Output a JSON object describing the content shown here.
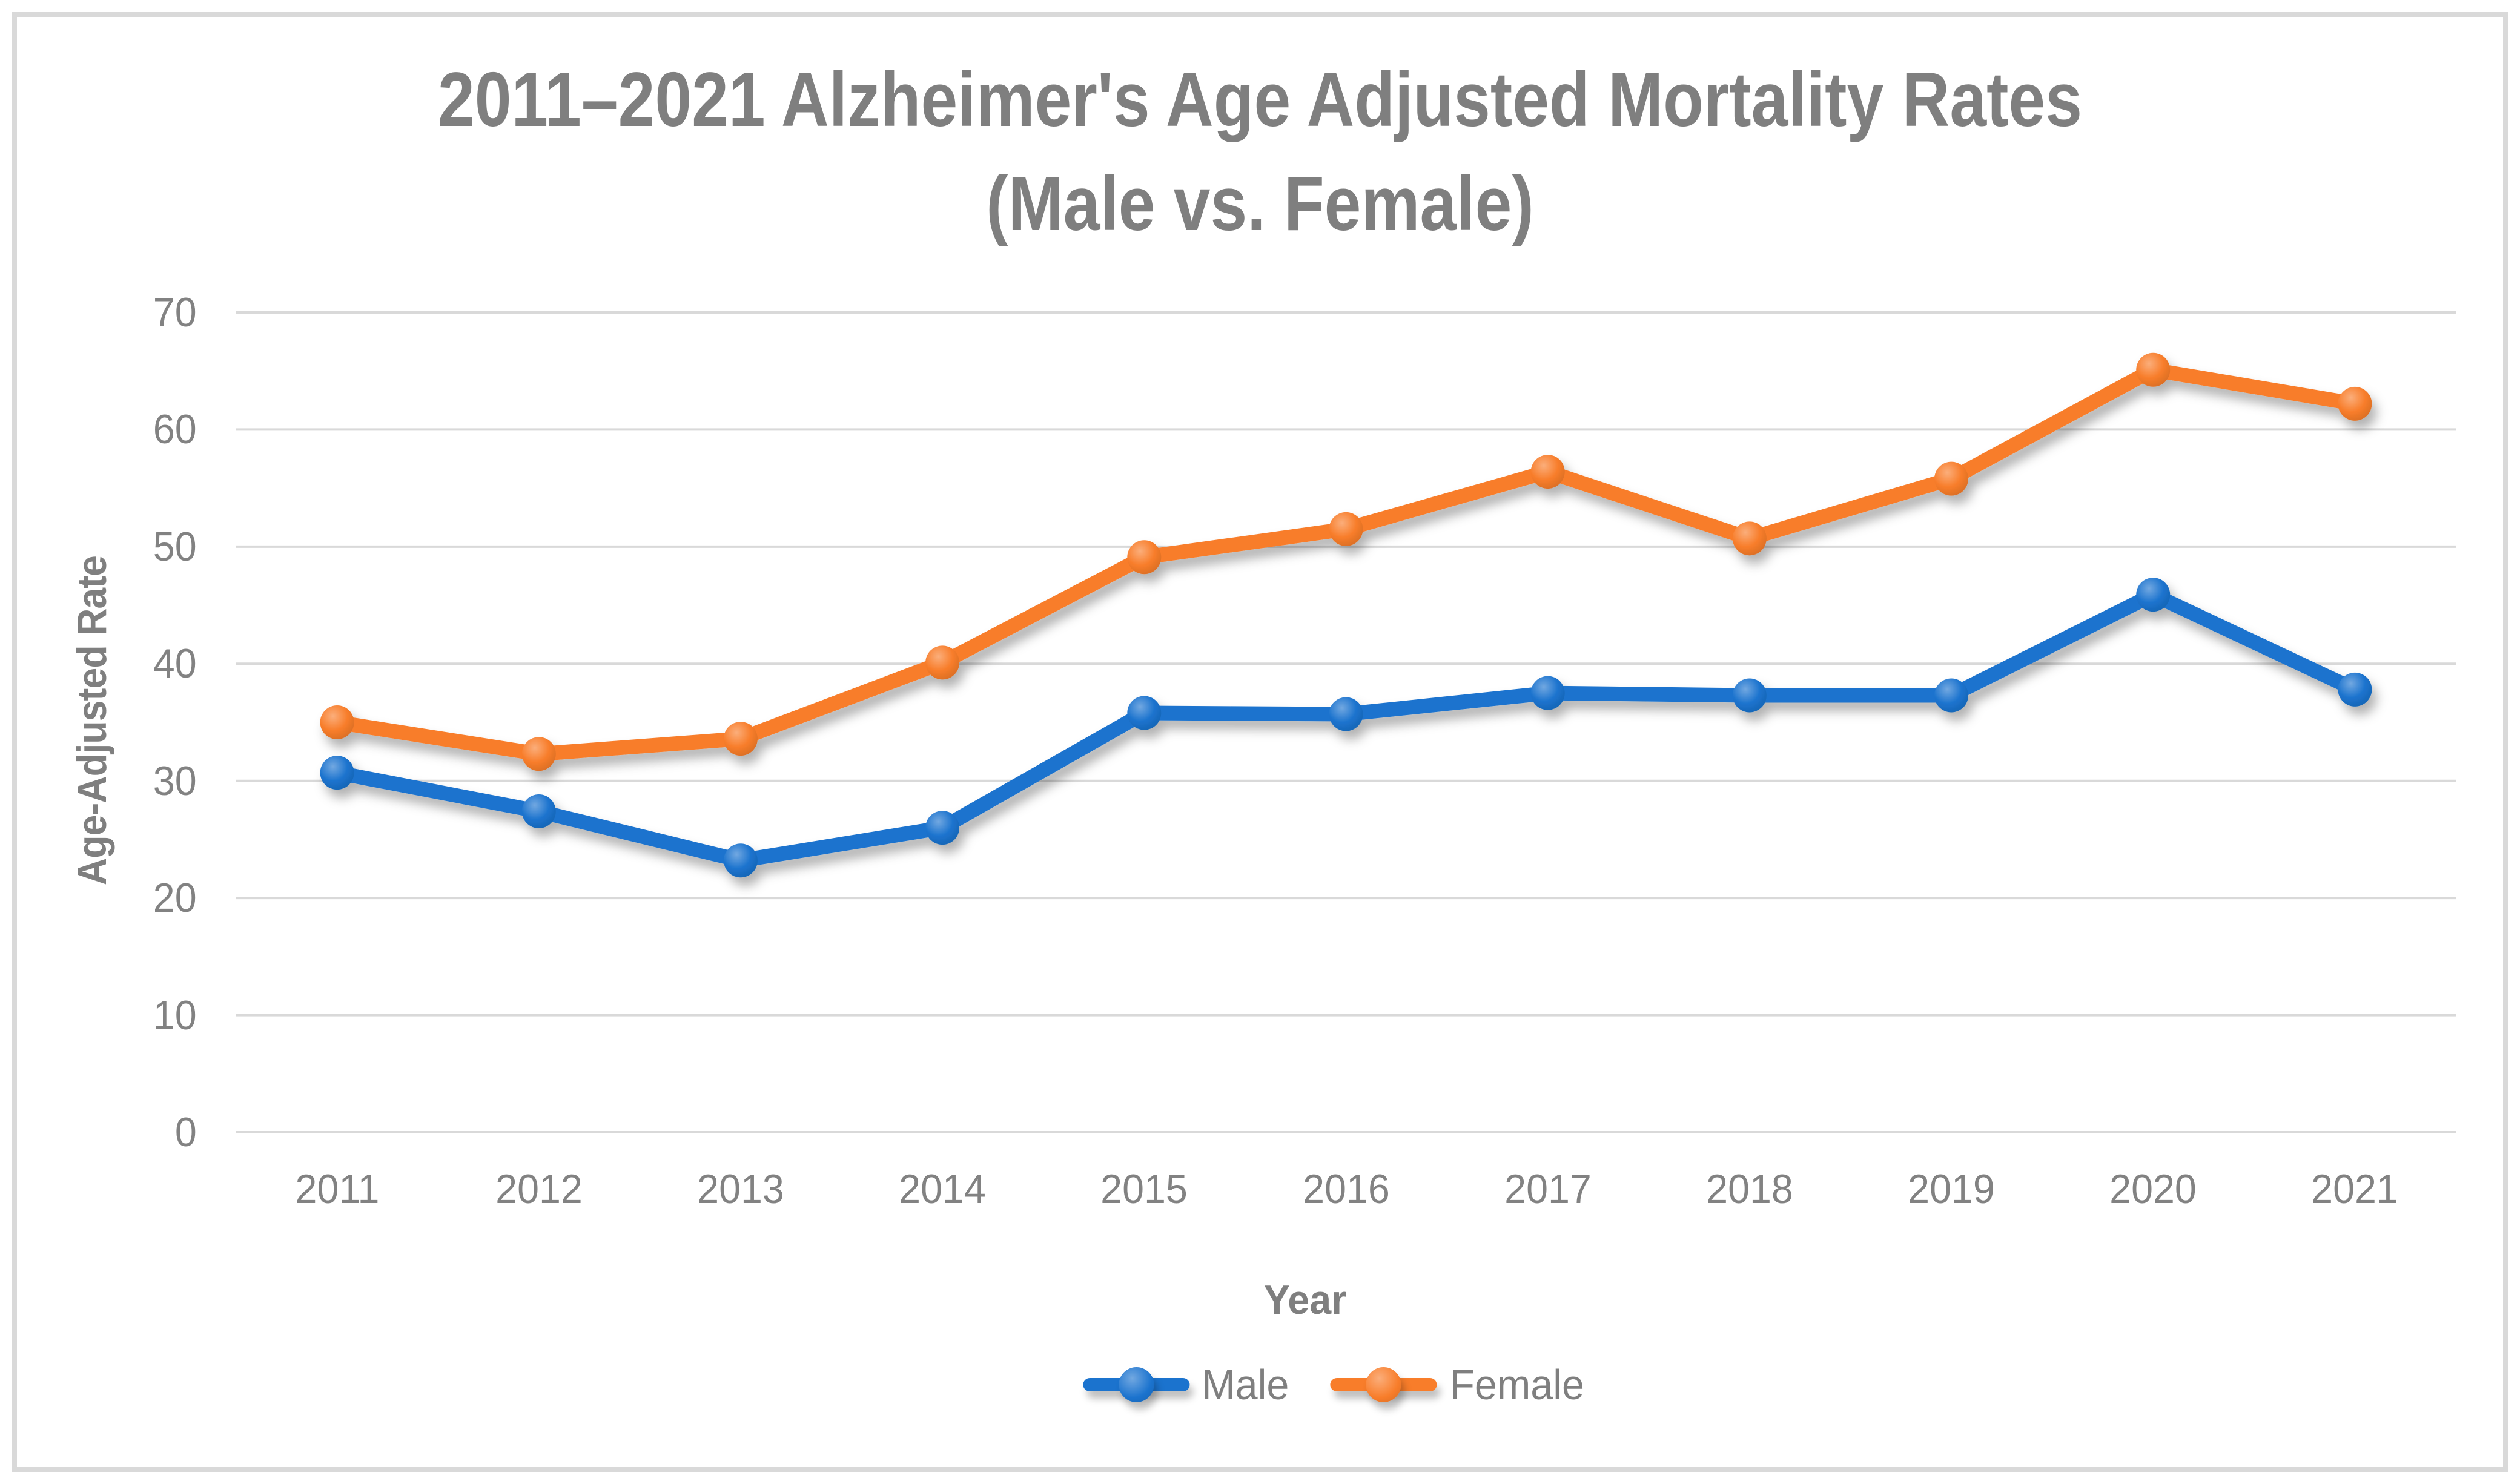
{
  "title": {
    "line1": "2011–2021 Alzheimer's Age Adjusted Mortality Rates",
    "line2": "(Male vs. Female)"
  },
  "axes": {
    "x_title": "Year",
    "y_title": "Age-Adjusted Rate"
  },
  "chart_data": {
    "type": "line",
    "title": "2011–2021 Alzheimer's Age Adjusted Mortality Rates (Male vs. Female)",
    "categories": [
      "2011",
      "2012",
      "2013",
      "2014",
      "2015",
      "2016",
      "2017",
      "2018",
      "2019",
      "2020",
      "2021"
    ],
    "series": [
      {
        "name": "Male",
        "color": "#1B73CE",
        "values": [
          30.7,
          27.4,
          23.2,
          26.0,
          35.8,
          35.7,
          37.5,
          37.3,
          37.3,
          45.9,
          37.8
        ]
      },
      {
        "name": "Female",
        "color": "#F87D2A",
        "values": [
          35.0,
          32.3,
          33.6,
          40.1,
          49.1,
          51.5,
          56.4,
          50.7,
          55.8,
          65.1,
          62.2
        ]
      }
    ],
    "xlabel": "Year",
    "ylabel": "Age-Adjusted Rate",
    "ylim": [
      0,
      70
    ],
    "y_ticks": [
      0,
      10,
      20,
      30,
      40,
      50,
      60,
      70
    ],
    "grid": true,
    "legend_position": "bottom"
  },
  "colors": {
    "male": "#1B73CE",
    "female": "#F87D2A",
    "gridline": "#D9D9D9",
    "frame_border": "#D9D9D9",
    "title_text": "#7F7F7F",
    "tick_text": "#828282"
  }
}
